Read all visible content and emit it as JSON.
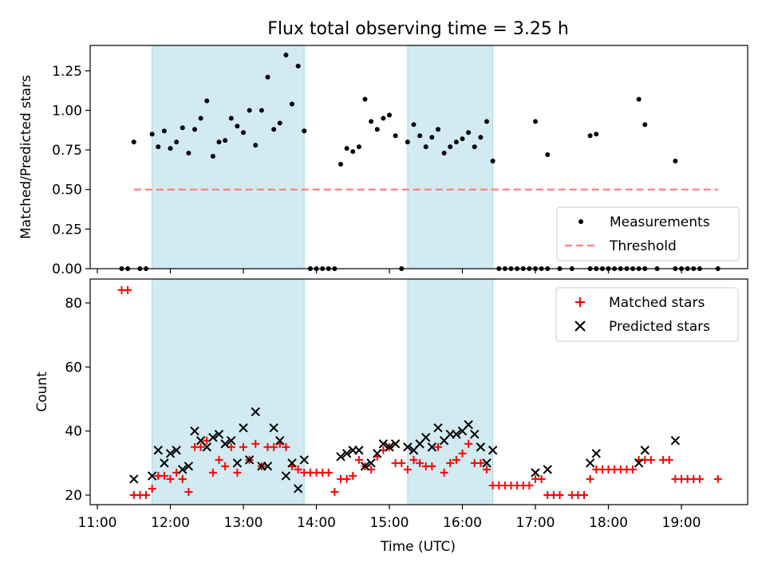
{
  "title": "Flux total observing time = 3.25 h",
  "xlabel": "Time (UTC)",
  "colors": {
    "band": "#add8e6",
    "matched": "#ff0000",
    "predicted": "#000000",
    "threshold": "#ff7f7f"
  },
  "chart_data": [
    {
      "type": "scatter",
      "ylabel": "Matched/Predicted stars",
      "xlim": [
        "11:00",
        "20:00"
      ],
      "ylim": [
        0,
        1.42
      ],
      "yticks": [
        0.0,
        0.25,
        0.5,
        0.75,
        1.0,
        1.25
      ],
      "ytick_labels": [
        "0.00",
        "0.25",
        "0.50",
        "0.75",
        "1.00",
        "1.25"
      ],
      "shaded_intervals": [
        [
          "11:45",
          "13:50"
        ],
        [
          "15:15",
          "16:25"
        ]
      ],
      "legend": {
        "position": "lower-right",
        "entries": [
          "Measurements",
          "Threshold"
        ]
      },
      "threshold": {
        "name": "Threshold",
        "y": 0.5,
        "x_range": [
          "11:30",
          "19:30"
        ]
      },
      "series": [
        {
          "name": "Measurements",
          "points": [
            [
              "11:20",
              0
            ],
            [
              "11:25",
              0
            ],
            [
              "11:30",
              0.8
            ],
            [
              "11:35",
              0
            ],
            [
              "11:40",
              0
            ],
            [
              "11:45",
              0.85
            ],
            [
              "11:50",
              0.77
            ],
            [
              "11:55",
              0.87
            ],
            [
              "12:00",
              0.76
            ],
            [
              "12:05",
              0.8
            ],
            [
              "12:10",
              0.89
            ],
            [
              "12:15",
              0.73
            ],
            [
              "12:20",
              0.88
            ],
            [
              "12:25",
              0.95
            ],
            [
              "12:30",
              1.06
            ],
            [
              "12:35",
              0.71
            ],
            [
              "12:40",
              0.8
            ],
            [
              "12:45",
              0.81
            ],
            [
              "12:50",
              0.95
            ],
            [
              "12:55",
              0.9
            ],
            [
              "13:00",
              0.86
            ],
            [
              "13:05",
              1.0
            ],
            [
              "13:10",
              0.78
            ],
            [
              "13:15",
              1.0
            ],
            [
              "13:20",
              1.21
            ],
            [
              "13:25",
              0.88
            ],
            [
              "13:30",
              0.92
            ],
            [
              "13:35",
              1.35
            ],
            [
              "13:40",
              1.04
            ],
            [
              "13:45",
              1.28
            ],
            [
              "13:50",
              0.87
            ],
            [
              "13:55",
              0
            ],
            [
              "14:00",
              0
            ],
            [
              "14:05",
              0
            ],
            [
              "14:10",
              0
            ],
            [
              "14:15",
              0
            ],
            [
              "14:20",
              0.66
            ],
            [
              "14:25",
              0.76
            ],
            [
              "14:30",
              0.74
            ],
            [
              "14:35",
              0.77
            ],
            [
              "14:40",
              1.07
            ],
            [
              "14:45",
              0.93
            ],
            [
              "14:50",
              0.88
            ],
            [
              "14:55",
              0.95
            ],
            [
              "15:00",
              0.97
            ],
            [
              "15:05",
              0.84
            ],
            [
              "15:10",
              0
            ],
            [
              "15:15",
              0.8
            ],
            [
              "15:20",
              0.91
            ],
            [
              "15:25",
              0.84
            ],
            [
              "15:30",
              0.77
            ],
            [
              "15:35",
              0.83
            ],
            [
              "15:40",
              0.88
            ],
            [
              "15:45",
              0.73
            ],
            [
              "15:50",
              0.77
            ],
            [
              "15:55",
              0.8
            ],
            [
              "16:00",
              0.82
            ],
            [
              "16:05",
              0.86
            ],
            [
              "16:10",
              0.77
            ],
            [
              "16:15",
              0.83
            ],
            [
              "16:20",
              0.93
            ],
            [
              "16:25",
              0.68
            ],
            [
              "16:30",
              0
            ],
            [
              "16:35",
              0
            ],
            [
              "16:40",
              0
            ],
            [
              "16:45",
              0
            ],
            [
              "16:50",
              0
            ],
            [
              "16:55",
              0
            ],
            [
              "17:00",
              0
            ],
            [
              "17:05",
              0
            ],
            [
              "17:10",
              0
            ],
            [
              "17:20",
              0
            ],
            [
              "17:30",
              0
            ],
            [
              "17:45",
              0
            ],
            [
              "17:50",
              0
            ],
            [
              "17:55",
              0
            ],
            [
              "18:00",
              0
            ],
            [
              "18:05",
              0
            ],
            [
              "18:10",
              0
            ],
            [
              "18:15",
              0
            ],
            [
              "18:20",
              0
            ],
            [
              "18:25",
              0
            ],
            [
              "18:30",
              0
            ],
            [
              "18:40",
              0
            ],
            [
              "18:55",
              0
            ],
            [
              "19:00",
              0
            ],
            [
              "19:05",
              0
            ],
            [
              "19:10",
              0
            ],
            [
              "19:15",
              0
            ],
            [
              "19:30",
              0
            ],
            [
              "17:00",
              0.93
            ],
            [
              "17:10",
              0.72
            ],
            [
              "17:45",
              0.84
            ],
            [
              "17:50",
              0.85
            ],
            [
              "18:25",
              1.07
            ],
            [
              "18:30",
              0.91
            ],
            [
              "18:55",
              0.68
            ]
          ]
        }
      ]
    },
    {
      "type": "scatter",
      "ylabel": "Count",
      "xlim": [
        "11:00",
        "20:00"
      ],
      "ylim": [
        17,
        87
      ],
      "yticks": [
        20,
        40,
        60,
        80
      ],
      "ytick_labels": [
        "20",
        "40",
        "60",
        "80"
      ],
      "xticks": [
        "11:00",
        "12:00",
        "13:00",
        "14:00",
        "15:00",
        "16:00",
        "17:00",
        "18:00",
        "19:00"
      ],
      "shaded_intervals": [
        [
          "11:45",
          "13:50"
        ],
        [
          "15:15",
          "16:25"
        ]
      ],
      "legend": {
        "position": "upper-right",
        "entries": [
          "Matched stars",
          "Predicted stars"
        ]
      },
      "series": [
        {
          "name": "Matched stars",
          "points": [
            [
              "11:20",
              84
            ],
            [
              "11:25",
              84
            ],
            [
              "11:30",
              20
            ],
            [
              "11:35",
              20
            ],
            [
              "11:40",
              20
            ],
            [
              "11:45",
              22
            ],
            [
              "11:50",
              26
            ],
            [
              "11:55",
              26
            ],
            [
              "12:00",
              25
            ],
            [
              "12:05",
              27
            ],
            [
              "12:10",
              25
            ],
            [
              "12:15",
              21
            ],
            [
              "12:20",
              35
            ],
            [
              "12:25",
              35
            ],
            [
              "12:30",
              37
            ],
            [
              "12:35",
              27
            ],
            [
              "12:40",
              31
            ],
            [
              "12:45",
              29
            ],
            [
              "12:50",
              35
            ],
            [
              "12:55",
              27
            ],
            [
              "13:00",
              35
            ],
            [
              "13:05",
              31
            ],
            [
              "13:10",
              36
            ],
            [
              "13:15",
              29
            ],
            [
              "13:20",
              35
            ],
            [
              "13:25",
              35
            ],
            [
              "13:30",
              36
            ],
            [
              "13:35",
              35
            ],
            [
              "13:40",
              29
            ],
            [
              "13:45",
              28
            ],
            [
              "13:50",
              27
            ],
            [
              "13:55",
              27
            ],
            [
              "14:00",
              27
            ],
            [
              "14:05",
              27
            ],
            [
              "14:10",
              27
            ],
            [
              "14:15",
              21
            ],
            [
              "14:20",
              25
            ],
            [
              "14:25",
              25
            ],
            [
              "14:30",
              26
            ],
            [
              "14:35",
              31
            ],
            [
              "14:40",
              29
            ],
            [
              "14:45",
              28
            ],
            [
              "14:50",
              32
            ],
            [
              "14:55",
              34
            ],
            [
              "15:00",
              35
            ],
            [
              "15:05",
              30
            ],
            [
              "15:10",
              30
            ],
            [
              "15:15",
              28
            ],
            [
              "15:20",
              31
            ],
            [
              "15:25",
              30
            ],
            [
              "15:30",
              29
            ],
            [
              "15:35",
              29
            ],
            [
              "15:40",
              35
            ],
            [
              "15:45",
              27
            ],
            [
              "15:50",
              30
            ],
            [
              "15:55",
              31
            ],
            [
              "16:00",
              33
            ],
            [
              "16:05",
              36
            ],
            [
              "16:10",
              30
            ],
            [
              "16:15",
              30
            ],
            [
              "16:20",
              28
            ],
            [
              "16:25",
              23
            ],
            [
              "16:30",
              23
            ],
            [
              "16:35",
              23
            ],
            [
              "16:40",
              23
            ],
            [
              "16:45",
              23
            ],
            [
              "16:50",
              23
            ],
            [
              "16:55",
              23
            ],
            [
              "17:00",
              25
            ],
            [
              "17:05",
              25
            ],
            [
              "17:10",
              20
            ],
            [
              "17:15",
              20
            ],
            [
              "17:20",
              20
            ],
            [
              "17:30",
              20
            ],
            [
              "17:35",
              20
            ],
            [
              "17:40",
              20
            ],
            [
              "17:45",
              25
            ],
            [
              "17:50",
              28
            ],
            [
              "17:55",
              28
            ],
            [
              "18:00",
              28
            ],
            [
              "18:05",
              28
            ],
            [
              "18:10",
              28
            ],
            [
              "18:15",
              28
            ],
            [
              "18:20",
              28
            ],
            [
              "18:25",
              31
            ],
            [
              "18:30",
              31
            ],
            [
              "18:35",
              31
            ],
            [
              "18:45",
              31
            ],
            [
              "18:50",
              31
            ],
            [
              "18:55",
              25
            ],
            [
              "19:00",
              25
            ],
            [
              "19:05",
              25
            ],
            [
              "19:10",
              25
            ],
            [
              "19:15",
              25
            ],
            [
              "19:30",
              25
            ]
          ]
        },
        {
          "name": "Predicted stars",
          "points": [
            [
              "11:30",
              25
            ],
            [
              "11:45",
              26
            ],
            [
              "11:50",
              34
            ],
            [
              "11:55",
              30
            ],
            [
              "12:00",
              33
            ],
            [
              "12:05",
              34
            ],
            [
              "12:10",
              28
            ],
            [
              "12:15",
              29
            ],
            [
              "12:20",
              40
            ],
            [
              "12:25",
              37
            ],
            [
              "12:30",
              35
            ],
            [
              "12:35",
              38
            ],
            [
              "12:40",
              39
            ],
            [
              "12:45",
              36
            ],
            [
              "12:50",
              37
            ],
            [
              "12:55",
              30
            ],
            [
              "13:00",
              41
            ],
            [
              "13:05",
              31
            ],
            [
              "13:10",
              46
            ],
            [
              "13:15",
              29
            ],
            [
              "13:20",
              29
            ],
            [
              "13:25",
              41
            ],
            [
              "13:30",
              37
            ],
            [
              "13:35",
              26
            ],
            [
              "13:40",
              30
            ],
            [
              "13:45",
              22
            ],
            [
              "13:50",
              31
            ],
            [
              "14:20",
              32
            ],
            [
              "14:25",
              33
            ],
            [
              "14:30",
              34
            ],
            [
              "14:35",
              34
            ],
            [
              "14:40",
              29
            ],
            [
              "14:45",
              30
            ],
            [
              "14:50",
              33
            ],
            [
              "14:55",
              36
            ],
            [
              "15:00",
              35
            ],
            [
              "15:05",
              36
            ],
            [
              "15:15",
              35
            ],
            [
              "15:20",
              34
            ],
            [
              "15:25",
              36
            ],
            [
              "15:30",
              38
            ],
            [
              "15:35",
              35
            ],
            [
              "15:40",
              41
            ],
            [
              "15:45",
              37
            ],
            [
              "15:50",
              39
            ],
            [
              "15:55",
              39
            ],
            [
              "16:00",
              40
            ],
            [
              "16:05",
              42
            ],
            [
              "16:10",
              39
            ],
            [
              "16:15",
              35
            ],
            [
              "16:20",
              30
            ],
            [
              "16:25",
              34
            ],
            [
              "17:00",
              27
            ],
            [
              "17:10",
              28
            ],
            [
              "17:45",
              30
            ],
            [
              "17:50",
              33
            ],
            [
              "18:25",
              30
            ],
            [
              "18:30",
              34
            ],
            [
              "18:55",
              37
            ]
          ]
        }
      ]
    }
  ]
}
